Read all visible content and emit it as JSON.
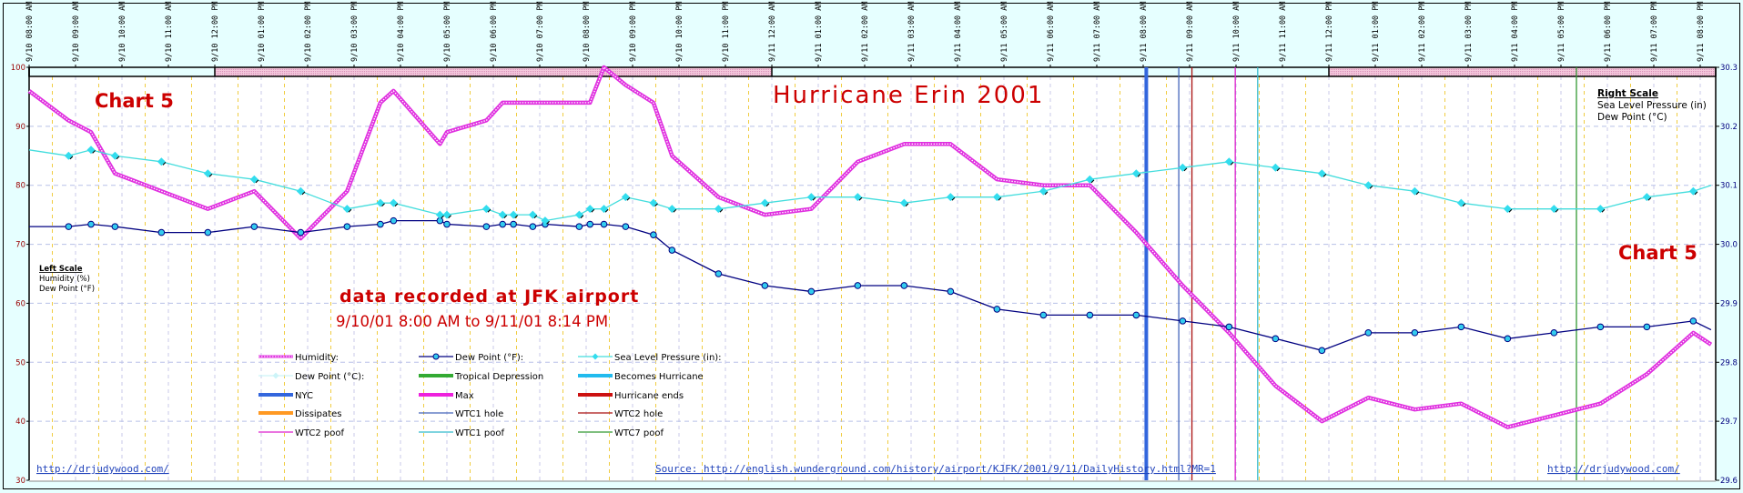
{
  "chart_data": {
    "type": "line",
    "title": "Hurricane Erin 2001",
    "chart_label": "Chart 5",
    "subtitle": "data recorded at JFK airport",
    "date_range": "9/10/01 8:00 AM to 9/11/01 8:14 PM",
    "xlim": [
      "9/10 8:00 AM",
      "9/11 8:20 PM"
    ],
    "x_tick_labels": [
      "9/10 08:00 AM",
      "9/10 09:00 AM",
      "9/10 10:00 AM",
      "9/10 11:00 AM",
      "9/10 12:00 PM",
      "9/10 01:00 PM",
      "9/10 02:00 PM",
      "9/10 03:00 PM",
      "9/10 04:00 PM",
      "9/10 05:00 PM",
      "9/10 06:00 PM",
      "9/10 07:00 PM",
      "9/10 08:00 PM",
      "9/10 09:00 PM",
      "9/10 10:00 PM",
      "9/10 11:00 PM",
      "9/11 12:00 AM",
      "9/11 01:00 AM",
      "9/11 02:00 AM",
      "9/11 03:00 AM",
      "9/11 04:00 AM",
      "9/11 05:00 AM",
      "9/11 06:00 AM",
      "9/11 07:00 AM",
      "9/11 08:00 AM",
      "9/11 09:00 AM",
      "9/11 10:00 AM",
      "9/11 11:00 AM",
      "9/11 12:00 PM",
      "9/11 01:00 PM",
      "9/11 02:00 PM",
      "9/11 03:00 PM",
      "9/11 04:00 PM",
      "9/11 05:00 PM",
      "9/11 06:00 PM",
      "9/11 07:00 PM",
      "9/11 08:00 PM"
    ],
    "left_axis": {
      "ylim": [
        30,
        100
      ],
      "ticks": [
        "30",
        "40",
        "50",
        "60",
        "70",
        "80",
        "90",
        "100"
      ],
      "title": "Left Scale",
      "items": [
        "Humidity (%)",
        "Dew Point (°F)"
      ],
      "color": "#990000"
    },
    "right_axis": {
      "ylim": [
        29.6,
        30.3
      ],
      "ticks": [
        "29.6",
        "29.7",
        "29.8",
        "29.9",
        "30.0",
        "30.1",
        "30.2",
        "30.3"
      ],
      "title": "Right Scale",
      "items": [
        "Sea Level Pressure (in)",
        "Dew Point (°C)"
      ],
      "color": "#000080"
    },
    "grid": true,
    "series": [
      {
        "name": "Humidity:",
        "axis": "left",
        "color": "#e030e0",
        "points": [
          [
            "9/10 8:00 AM",
            96
          ],
          [
            "9/10 8:51 AM",
            91
          ],
          [
            "9/10 9:20 AM",
            89
          ],
          [
            "9/10 9:51 AM",
            82
          ],
          [
            "9/10 10:51 AM",
            79
          ],
          [
            "9/10 11:51 AM",
            76
          ],
          [
            "9/10 12:51 PM",
            79
          ],
          [
            "9/10 1:51 PM",
            71
          ],
          [
            "9/10 2:51 PM",
            79
          ],
          [
            "9/10 3:34 PM",
            94
          ],
          [
            "9/10 3:51 PM",
            96
          ],
          [
            "9/10 4:51 PM",
            87
          ],
          [
            "9/10 5:00 PM",
            89
          ],
          [
            "9/10 5:51 PM",
            91
          ],
          [
            "9/10 6:12 PM",
            94
          ],
          [
            "9/10 6:51 PM",
            94
          ],
          [
            "9/10 7:51 PM",
            94
          ],
          [
            "9/10 8:05 PM",
            94
          ],
          [
            "9/10 8:23 PM",
            100
          ],
          [
            "9/10 8:51 PM",
            97
          ],
          [
            "9/10 9:27 PM",
            94
          ],
          [
            "9/10 9:51 PM",
            85
          ],
          [
            "9/10 10:51 PM",
            78
          ],
          [
            "9/10 11:51 PM",
            75
          ],
          [
            "9/11 12:51 AM",
            76
          ],
          [
            "9/11 1:51 AM",
            84
          ],
          [
            "9/11 2:51 AM",
            87
          ],
          [
            "9/11 3:51 AM",
            87
          ],
          [
            "9/11 4:51 AM",
            81
          ],
          [
            "9/11 5:51 AM",
            80
          ],
          [
            "9/11 6:51 AM",
            80
          ],
          [
            "9/11 7:51 AM",
            72
          ],
          [
            "9/11 8:51 AM",
            63
          ],
          [
            "9/11 9:51 AM",
            55
          ],
          [
            "9/11 10:51 AM",
            46
          ],
          [
            "9/11 11:51 AM",
            40
          ],
          [
            "9/11 12:51 PM",
            44
          ],
          [
            "9/11 1:51 PM",
            42
          ],
          [
            "9/11 2:51 PM",
            43
          ],
          [
            "9/11 3:51 PM",
            39
          ],
          [
            "9/11 4:51 PM",
            41
          ],
          [
            "9/11 5:51 PM",
            43
          ],
          [
            "9/11 6:51 PM",
            48
          ],
          [
            "9/11 7:51 PM",
            55
          ],
          [
            "9/11 8:14 PM",
            53
          ]
        ]
      },
      {
        "name": "Dew Point (°F):",
        "axis": "left",
        "color": "#000080",
        "points": [
          [
            "9/10 8:00 AM",
            73
          ],
          [
            "9/10 8:51 AM",
            73
          ],
          [
            "9/10 9:20 AM",
            73.4
          ],
          [
            "9/10 9:51 AM",
            73
          ],
          [
            "9/10 10:51 AM",
            72
          ],
          [
            "9/10 11:51 AM",
            72
          ],
          [
            "9/10 12:51 PM",
            73
          ],
          [
            "9/10 1:51 PM",
            72
          ],
          [
            "9/10 2:51 PM",
            73
          ],
          [
            "9/10 3:34 PM",
            73.4
          ],
          [
            "9/10 3:51 PM",
            74
          ],
          [
            "9/10 4:51 PM",
            74
          ],
          [
            "9/10 5:00 PM",
            73.4
          ],
          [
            "9/10 5:51 PM",
            73
          ],
          [
            "9/10 6:12 PM",
            73.4
          ],
          [
            "9/10 6:26 PM",
            73.4
          ],
          [
            "9/10 6:51 PM",
            73
          ],
          [
            "9/10 7:07 PM",
            73.4
          ],
          [
            "9/10 7:51 PM",
            73
          ],
          [
            "9/10 8:05 PM",
            73.4
          ],
          [
            "9/10 8:23 PM",
            73.4
          ],
          [
            "9/10 8:51 PM",
            73
          ],
          [
            "9/10 9:27 PM",
            71.6
          ],
          [
            "9/10 9:51 PM",
            69
          ],
          [
            "9/10 10:51 PM",
            65
          ],
          [
            "9/10 11:51 PM",
            63
          ],
          [
            "9/11 12:51 AM",
            62
          ],
          [
            "9/11 1:51 AM",
            63
          ],
          [
            "9/11 2:51 AM",
            63
          ],
          [
            "9/11 3:51 AM",
            62
          ],
          [
            "9/11 4:51 AM",
            59
          ],
          [
            "9/11 5:51 AM",
            58
          ],
          [
            "9/11 6:51 AM",
            58
          ],
          [
            "9/11 7:51 AM",
            58
          ],
          [
            "9/11 8:51 AM",
            57
          ],
          [
            "9/11 9:51 AM",
            56
          ],
          [
            "9/11 10:51 AM",
            54
          ],
          [
            "9/11 11:51 AM",
            52
          ],
          [
            "9/11 12:51 PM",
            55
          ],
          [
            "9/11 1:51 PM",
            55
          ],
          [
            "9/11 2:51 PM",
            56
          ],
          [
            "9/11 3:51 PM",
            54
          ],
          [
            "9/11 4:51 PM",
            55
          ],
          [
            "9/11 5:51 PM",
            56
          ],
          [
            "9/11 6:51 PM",
            56
          ],
          [
            "9/11 7:51 PM",
            57
          ],
          [
            "9/11 8:14 PM",
            55.5
          ]
        ]
      },
      {
        "name": "Sea Level Pressure (in):",
        "axis": "right",
        "color": "#44dddd",
        "points": [
          [
            "9/10 8:00 AM",
            30.16
          ],
          [
            "9/10 8:51 AM",
            30.15
          ],
          [
            "9/10 9:20 AM",
            30.16
          ],
          [
            "9/10 9:51 AM",
            30.15
          ],
          [
            "9/10 10:51 AM",
            30.14
          ],
          [
            "9/10 11:51 AM",
            30.12
          ],
          [
            "9/10 12:51 PM",
            30.11
          ],
          [
            "9/10 1:51 PM",
            30.09
          ],
          [
            "9/10 2:51 PM",
            30.06
          ],
          [
            "9/10 3:34 PM",
            30.07
          ],
          [
            "9/10 3:51 PM",
            30.07
          ],
          [
            "9/10 4:51 PM",
            30.05
          ],
          [
            "9/10 5:00 PM",
            30.05
          ],
          [
            "9/10 5:51 PM",
            30.06
          ],
          [
            "9/10 6:12 PM",
            30.05
          ],
          [
            "9/10 6:26 PM",
            30.05
          ],
          [
            "9/10 6:51 PM",
            30.05
          ],
          [
            "9/10 7:07 PM",
            30.04
          ],
          [
            "9/10 7:51 PM",
            30.05
          ],
          [
            "9/10 8:05 PM",
            30.06
          ],
          [
            "9/10 8:23 PM",
            30.06
          ],
          [
            "9/10 8:51 PM",
            30.08
          ],
          [
            "9/10 9:27 PM",
            30.07
          ],
          [
            "9/10 9:51 PM",
            30.06
          ],
          [
            "9/10 10:51 PM",
            30.06
          ],
          [
            "9/10 11:51 PM",
            30.07
          ],
          [
            "9/11 12:51 AM",
            30.08
          ],
          [
            "9/11 1:51 AM",
            30.08
          ],
          [
            "9/11 2:51 AM",
            30.07
          ],
          [
            "9/11 3:51 AM",
            30.08
          ],
          [
            "9/11 4:51 AM",
            30.08
          ],
          [
            "9/11 5:51 AM",
            30.09
          ],
          [
            "9/11 6:51 AM",
            30.11
          ],
          [
            "9/11 7:51 AM",
            30.12
          ],
          [
            "9/11 8:51 AM",
            30.13
          ],
          [
            "9/11 9:51 AM",
            30.14
          ],
          [
            "9/11 10:51 AM",
            30.13
          ],
          [
            "9/11 11:51 AM",
            30.12
          ],
          [
            "9/11 12:51 PM",
            30.1
          ],
          [
            "9/11 1:51 PM",
            30.09
          ],
          [
            "9/11 2:51 PM",
            30.07
          ],
          [
            "9/11 3:51 PM",
            30.06
          ],
          [
            "9/11 4:51 PM",
            30.06
          ],
          [
            "9/11 5:51 PM",
            30.06
          ],
          [
            "9/11 6:51 PM",
            30.08
          ],
          [
            "9/11 7:51 PM",
            30.09
          ],
          [
            "9/11 8:14 PM",
            30.1
          ]
        ]
      }
    ],
    "event_lines": [
      {
        "label": "NYC",
        "time": "9/11 8:04 AM",
        "color": "#3366dd",
        "thick": true
      },
      {
        "label": "WTC1 hole",
        "time": "9/11 8:46 AM",
        "color": "#4466bb",
        "thick": false
      },
      {
        "label": "WTC2 hole",
        "time": "9/11 9:03 AM",
        "color": "#aa1111",
        "thick": false
      },
      {
        "label": "WTC2 poof",
        "time": "9/11 9:59 AM",
        "color": "#dd22cc",
        "thick": false
      },
      {
        "label": "WTC1 poof",
        "time": "9/11 10:28 AM",
        "color": "#33bbcc",
        "thick": false
      },
      {
        "label": "WTC7 poof",
        "time": "9/11 5:20 PM",
        "color": "#339933",
        "thick": false
      }
    ],
    "top_band": [
      {
        "from": "9/10 8:00 AM",
        "to": "9/10 12:00 PM",
        "color": "#e6ffff"
      },
      {
        "from": "9/10 12:00 PM",
        "to": "9/11 12:00 AM",
        "color": "#f2b8d8"
      },
      {
        "from": "9/11 12:00 AM",
        "to": "9/11 12:00 PM",
        "color": "#e6ffff"
      },
      {
        "from": "9/11 12:00 PM",
        "to": "9/11 8:20 PM",
        "color": "#f2b8d8"
      }
    ],
    "legend": [
      {
        "label": "Humidity:",
        "color": "#e030e0",
        "style": "hatched"
      },
      {
        "label": "Dew Point (°F):",
        "color": "#000080",
        "style": "circle"
      },
      {
        "label": "Sea Level Pressure (in):",
        "color": "#44dddd",
        "style": "diamond"
      },
      {
        "label": "Dew Point (°C):",
        "color": "#ccf4f8",
        "style": "diamond-light"
      },
      {
        "label": "Tropical Depression",
        "color": "#33aa33",
        "style": "thick"
      },
      {
        "label": "Becomes Hurricane",
        "color": "#22bbee",
        "style": "thick"
      },
      {
        "label": "NYC",
        "color": "#3366dd",
        "style": "thick"
      },
      {
        "label": "Max",
        "color": "#ee22dd",
        "style": "thick"
      },
      {
        "label": "Hurricane ends",
        "color": "#cc1111",
        "style": "thick"
      },
      {
        "label": "Dissipates",
        "color": "#ff9922",
        "style": "thick"
      },
      {
        "label": "WTC1 hole",
        "color": "#4466bb",
        "style": "thin"
      },
      {
        "label": "WTC2 hole",
        "color": "#aa1111",
        "style": "thin"
      },
      {
        "label": "WTC2 poof",
        "color": "#dd22cc",
        "style": "thin"
      },
      {
        "label": "WTC1 poof",
        "color": "#33bbcc",
        "style": "thin"
      },
      {
        "label": "WTC7 poof",
        "color": "#339933",
        "style": "thin"
      }
    ]
  },
  "links": {
    "site_left": "http://drjudywood.com/",
    "site_right": "http://drjudywood.com/",
    "source": "Source: http://english.wunderground.com/history/airport/KJFK/2001/9/11/DailyHistory.html?MR=1"
  },
  "colors": {
    "background": "#e6ffff",
    "plot": "#ffffff",
    "title_red": "#cc0000"
  }
}
